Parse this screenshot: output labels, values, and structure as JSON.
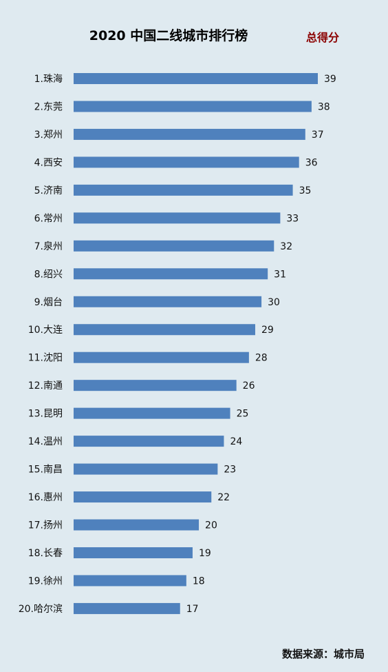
{
  "chart_data": {
    "type": "bar",
    "orientation": "horizontal",
    "title": "2020 中国二线城市排行榜",
    "series": [
      {
        "name": "总得分",
        "values": [
          39,
          38,
          37,
          36,
          35,
          33,
          32,
          31,
          30,
          29,
          28,
          26,
          25,
          24,
          23,
          22,
          20,
          19,
          18,
          17
        ]
      }
    ],
    "categories": [
      "1.珠海",
      "2.东莞",
      "3.郑州",
      "4.西安",
      "5.济南",
      "6.常州",
      "7.泉州",
      "8.绍兴",
      "9.烟台",
      "10.大连",
      "11.沈阳",
      "12.南通",
      "13.昆明",
      "14.温州",
      "15.南昌",
      "16.惠州",
      "17.扬州",
      "18.长春",
      "19.徐州",
      "20.哈尔滨"
    ],
    "values": [
      39,
      38,
      37,
      36,
      35,
      33,
      32,
      31,
      30,
      29,
      28,
      26,
      25,
      24,
      23,
      22,
      20,
      19,
      18,
      17
    ],
    "xlim": [
      0,
      39
    ],
    "grid": false,
    "legend_position": "top-right",
    "bar_color": "#4f81bd",
    "legend_color": "#8b0000",
    "background": "#dfeaf0"
  },
  "footer": {
    "source": "数据来源：城市局"
  }
}
